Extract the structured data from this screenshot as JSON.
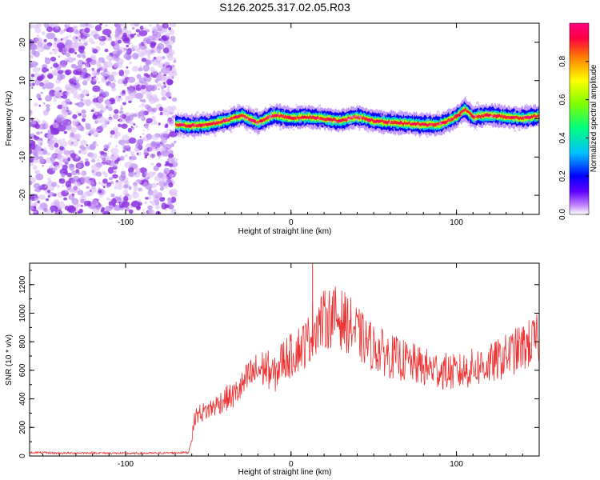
{
  "title": "S126.2025.317.02.05.R03",
  "chart_data": [
    {
      "type": "heatmap",
      "title": "S126.2025.317.02.05.R03",
      "xlabel": "Height of straight line (km)",
      "ylabel": "Frequency (Hz)",
      "xlim": [
        -158,
        150
      ],
      "ylim": [
        -25,
        25
      ],
      "xticks": [
        -100,
        0,
        100
      ],
      "yticks": [
        -20,
        -10,
        0,
        10,
        20
      ],
      "grid": false,
      "colorbar": {
        "label": "Normalized spectral amplitude",
        "range": [
          0,
          1
        ],
        "ticks": [
          "0.0",
          "0.2",
          "0.4",
          "0.6",
          "0.8"
        ],
        "tick_values": [
          0.0,
          0.2,
          0.4,
          0.6,
          0.8
        ],
        "colormap": [
          "#ffffff",
          "#c080ff",
          "#6000ff",
          "#0000ff",
          "#00c0ff",
          "#00ff80",
          "#80ff00",
          "#ffff00",
          "#ff8000",
          "#ff0040",
          "#ff0080"
        ]
      },
      "noise_region_x": [
        -158,
        -70
      ],
      "signal_ridge": {
        "x": [
          -70,
          -60,
          -50,
          -40,
          -30,
          -20,
          -10,
          0,
          10,
          20,
          30,
          40,
          50,
          60,
          70,
          80,
          90,
          100,
          105,
          110,
          120,
          130,
          140,
          150
        ],
        "y": [
          -1.5,
          -1.8,
          -1.5,
          -0.5,
          0.8,
          -1.0,
          1.0,
          0.2,
          0.5,
          0.0,
          -0.5,
          0.5,
          -0.5,
          -1.0,
          -1.2,
          -1.5,
          -1.5,
          0.5,
          2.5,
          0.5,
          1.0,
          0.5,
          0.2,
          0.8
        ],
        "amplitude": [
          0.7,
          0.8,
          0.75,
          0.7,
          0.8,
          0.85,
          0.9,
          0.9,
          0.95,
          0.9,
          0.85,
          0.8,
          0.85,
          0.9,
          0.85,
          0.8,
          0.75,
          0.8,
          0.85,
          0.9,
          0.95,
          0.9,
          0.85,
          0.8
        ]
      }
    },
    {
      "type": "line",
      "xlabel": "Height of straight line (km)",
      "ylabel": "SNR (10 * v/v)",
      "xlim": [
        -158,
        150
      ],
      "ylim": [
        0,
        1350
      ],
      "xticks": [
        -100,
        0,
        100
      ],
      "yticks": [
        0,
        200,
        400,
        600,
        800,
        1000,
        1200
      ],
      "grid": false,
      "series": [
        {
          "color": "#ee3333",
          "x": [
            -158,
            -140,
            -120,
            -100,
            -80,
            -62,
            -60,
            -58,
            -55,
            -50,
            -45,
            -40,
            -35,
            -30,
            -25,
            -20,
            -15,
            -10,
            -5,
            0,
            5,
            10,
            13,
            15,
            20,
            25,
            30,
            35,
            40,
            45,
            50,
            60,
            70,
            80,
            90,
            100,
            110,
            120,
            130,
            140,
            150
          ],
          "y": [
            25,
            20,
            22,
            18,
            20,
            25,
            120,
            280,
            300,
            320,
            360,
            400,
            420,
            480,
            560,
            600,
            620,
            560,
            680,
            700,
            760,
            800,
            900,
            920,
            950,
            980,
            960,
            920,
            860,
            800,
            760,
            700,
            660,
            620,
            600,
            580,
            620,
            640,
            700,
            760,
            820
          ],
          "spike": {
            "x": 13,
            "y": 1350
          }
        }
      ]
    }
  ]
}
